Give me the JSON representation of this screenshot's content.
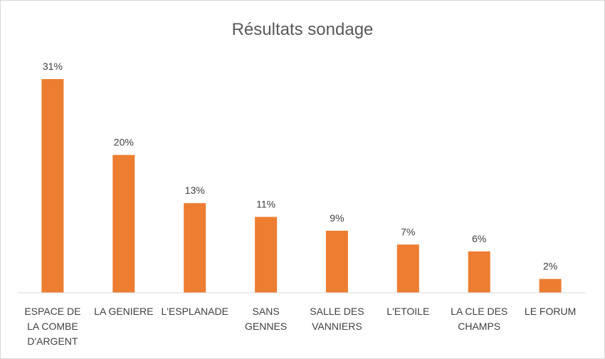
{
  "chart_data": {
    "type": "bar",
    "title": "Résultats sondage",
    "categories": [
      "ESPACE DE LA COMBE D'ARGENT",
      "LA GENIERE",
      "L'ESPLANADE",
      "SANS GENNES",
      "SALLE DES VANNIERS",
      "L'ETOILE",
      "LA CLE DES CHAMPS",
      "LE FORUM"
    ],
    "category_lines": [
      [
        "ESPACE DE",
        "LA COMBE",
        "D'ARGENT"
      ],
      [
        "LA GENIERE"
      ],
      [
        "L'ESPLANADE"
      ],
      [
        "SANS",
        "GENNES"
      ],
      [
        "SALLE DES",
        "VANNIERS"
      ],
      [
        "L'ETOILE"
      ],
      [
        "LA CLE DES",
        "CHAMPS"
      ],
      [
        "LE FORUM"
      ]
    ],
    "values": [
      31,
      20,
      13,
      11,
      9,
      7,
      6,
      2
    ],
    "value_labels": [
      "31%",
      "20%",
      "13%",
      "11%",
      "9%",
      "7%",
      "6%",
      "2%"
    ],
    "unit": "%",
    "ylim": [
      0,
      31
    ],
    "grid": false,
    "legend": "none",
    "bar_color": "#ED7D31",
    "axis_color": "#d9d9d9"
  }
}
